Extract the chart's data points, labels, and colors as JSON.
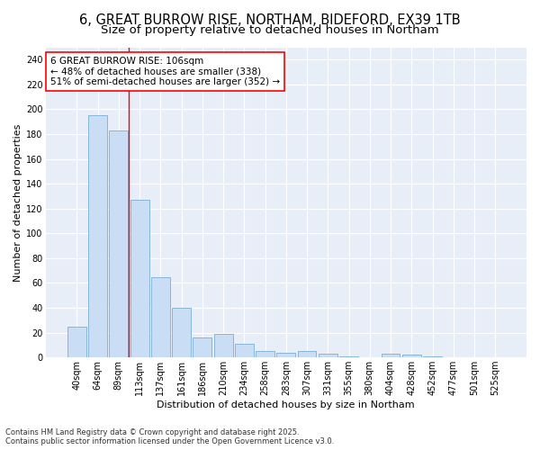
{
  "title_line1": "6, GREAT BURROW RISE, NORTHAM, BIDEFORD, EX39 1TB",
  "title_line2": "Size of property relative to detached houses in Northam",
  "xlabel": "Distribution of detached houses by size in Northam",
  "ylabel": "Number of detached properties",
  "categories": [
    "40sqm",
    "64sqm",
    "89sqm",
    "113sqm",
    "137sqm",
    "161sqm",
    "186sqm",
    "210sqm",
    "234sqm",
    "258sqm",
    "283sqm",
    "307sqm",
    "331sqm",
    "355sqm",
    "380sqm",
    "404sqm",
    "428sqm",
    "452sqm",
    "477sqm",
    "501sqm",
    "525sqm"
  ],
  "bar_heights": [
    25,
    195,
    183,
    127,
    65,
    40,
    16,
    19,
    11,
    5,
    4,
    5,
    3,
    1,
    0,
    3,
    2,
    1,
    0,
    0,
    0
  ],
  "bar_color": "#c9ddf5",
  "bar_edge_color": "#7bafd4",
  "ylim": [
    0,
    250
  ],
  "yticks": [
    0,
    20,
    40,
    60,
    80,
    100,
    120,
    140,
    160,
    180,
    200,
    220,
    240
  ],
  "red_line_x": 2.5,
  "annotation_line1": "6 GREAT BURROW RISE: 106sqm",
  "annotation_line2": "← 48% of detached houses are smaller (338)",
  "annotation_line3": "51% of semi-detached houses are larger (352) →",
  "footnote_line1": "Contains HM Land Registry data © Crown copyright and database right 2025.",
  "footnote_line2": "Contains public sector information licensed under the Open Government Licence v3.0.",
  "bg_color": "#ffffff",
  "plot_bg_color": "#e8eef8",
  "grid_color": "#ffffff",
  "title_fontsize": 10.5,
  "subtitle_fontsize": 9.5,
  "axis_label_fontsize": 8,
  "tick_fontsize": 7,
  "annotation_fontsize": 7.5,
  "footnote_fontsize": 6
}
